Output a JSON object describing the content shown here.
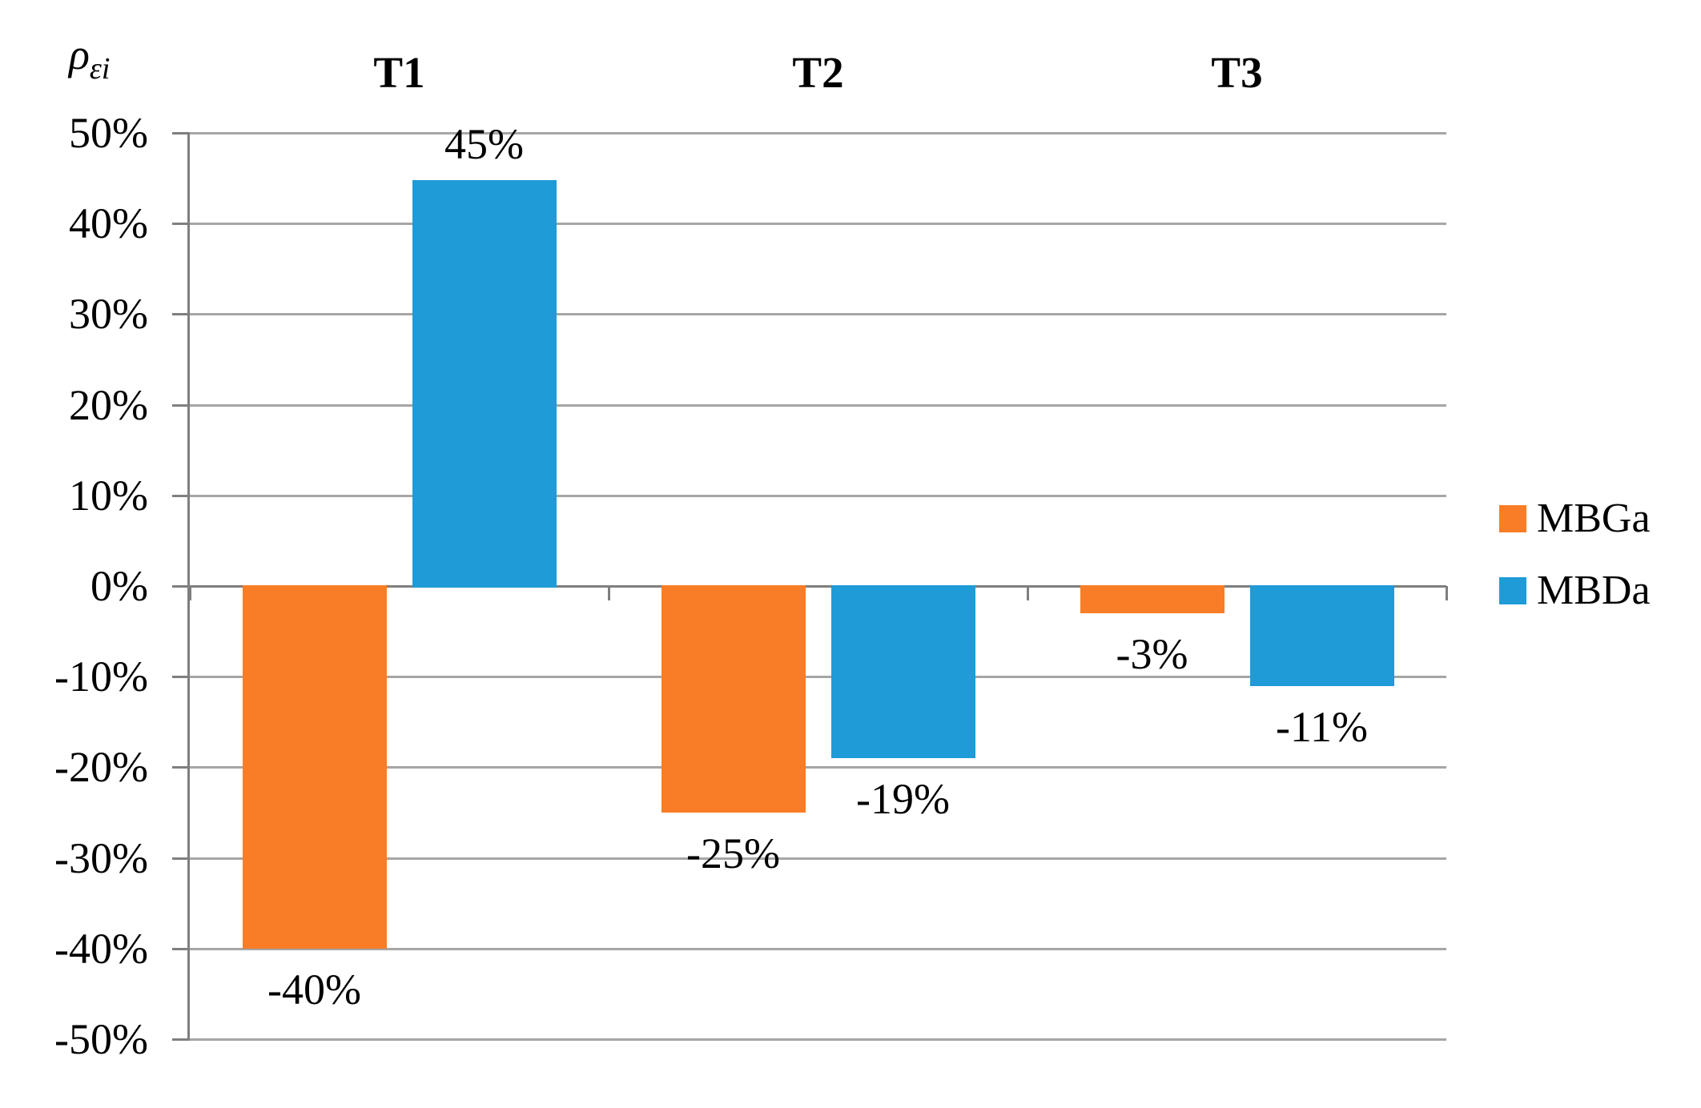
{
  "chart_data": {
    "type": "bar",
    "title": "",
    "y_axis_label": {
      "base": "ρ",
      "subscript": "εi"
    },
    "categories": [
      "T1",
      "T2",
      "T3"
    ],
    "series": [
      {
        "name": "MBGa",
        "color": "#F97D26",
        "values": [
          -40,
          -25,
          -3
        ],
        "data_labels": [
          "-40%",
          "-25%",
          "-3%"
        ]
      },
      {
        "name": "MBDa",
        "color": "#1F9BD7",
        "values": [
          45,
          -19,
          -11
        ],
        "data_labels": [
          "45%",
          "-19%",
          "-11%"
        ]
      }
    ],
    "y_ticks": [
      {
        "value": 50,
        "label": "50%"
      },
      {
        "value": 40,
        "label": "40%"
      },
      {
        "value": 30,
        "label": "30%"
      },
      {
        "value": 20,
        "label": "20%"
      },
      {
        "value": 10,
        "label": "10%"
      },
      {
        "value": 0,
        "label": "0%"
      },
      {
        "value": -10,
        "label": "-10%"
      },
      {
        "value": -20,
        "label": "-20%"
      },
      {
        "value": -30,
        "label": "-30%"
      },
      {
        "value": -40,
        "label": "-40%"
      },
      {
        "value": -50,
        "label": "-50%"
      }
    ],
    "ylim": [
      -50,
      50
    ],
    "grid": "horizontal",
    "legend_position": "right",
    "colors": {
      "gridline": "#A6A6A6",
      "axis": "#7F7F7F",
      "text": "#000000"
    }
  }
}
